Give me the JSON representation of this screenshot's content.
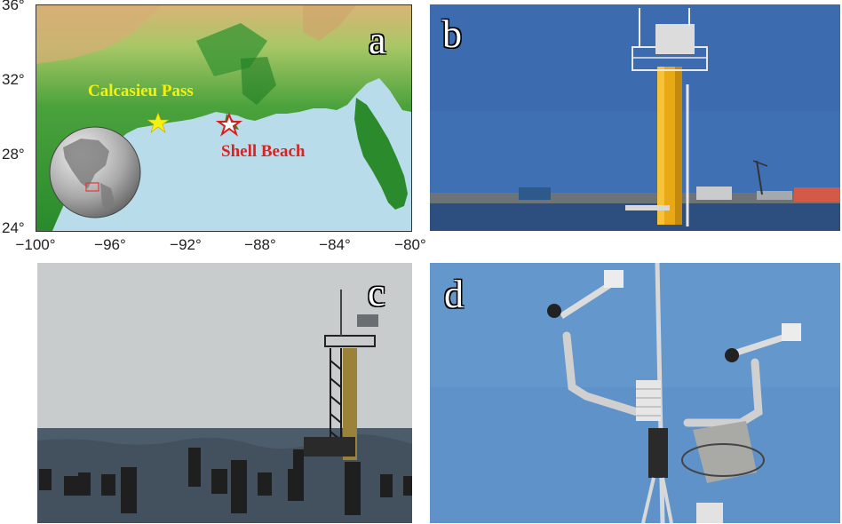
{
  "panels": {
    "a": {
      "letter": "a",
      "y_ticks": [
        "36°",
        "32°",
        "28°",
        "24°"
      ],
      "x_ticks": [
        "−100°",
        "−96°",
        "−92°",
        "−88°",
        "−84°",
        "−80°"
      ],
      "sites": [
        {
          "label": "Calcasieu Pass",
          "color": "#f4f10f",
          "marker": "star-icon"
        },
        {
          "label": "Shell Beach",
          "color": "#e02020",
          "marker": "star-icon"
        }
      ],
      "colors": {
        "land_low": "#2f8a2a",
        "land_mid": "#7ab84a",
        "land_high": "#e8c48a",
        "sea": "#b9dcea"
      }
    },
    "b": {
      "letter": "b",
      "colors": {
        "sky": "#3f70b4",
        "tower": "#e8a915",
        "water": "#2c4f80"
      }
    },
    "c": {
      "letter": "c",
      "colors": {
        "sky": "#c9cccd",
        "water": "#4d5c6a",
        "pilings": "#1f1f1f"
      }
    },
    "d": {
      "letter": "d",
      "colors": {
        "sky": "#5e92c8",
        "mast": "#d8d8d8"
      }
    }
  }
}
